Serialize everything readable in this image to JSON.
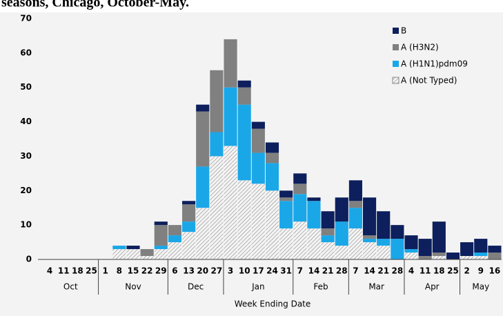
{
  "chart_data": {
    "type": "stacked_bar",
    "title": "seasons, Chicago, October-May.",
    "x_label": "Week Ending Date",
    "categories": [
      "4",
      "11",
      "18",
      "25",
      "1",
      "8",
      "15",
      "22",
      "29",
      "6",
      "13",
      "20",
      "27",
      "3",
      "10",
      "17",
      "24",
      "31",
      "7",
      "14",
      "21",
      "28",
      "7",
      "14",
      "21",
      "28",
      "4",
      "11",
      "18",
      "25",
      "2",
      "9",
      "16"
    ],
    "months": [
      "Oct",
      null,
      null,
      null,
      "Nov",
      null,
      null,
      null,
      null,
      "Dec",
      null,
      null,
      null,
      "Jan",
      null,
      null,
      null,
      null,
      "Feb",
      null,
      null,
      null,
      "Mar",
      null,
      null,
      null,
      "Apr",
      null,
      null,
      null,
      "May",
      null,
      null
    ],
    "series": [
      {
        "name": "A (Not Typed)",
        "color": "#d0d0d0",
        "hatch": true,
        "values": [
          0,
          0,
          0,
          0,
          0,
          3,
          3,
          1,
          3,
          5,
          8,
          15,
          30,
          33,
          23,
          22,
          20,
          9,
          11,
          9,
          5,
          4,
          9,
          5,
          4,
          0,
          2,
          0,
          1,
          0,
          1,
          1,
          0
        ]
      },
      {
        "name": "A (H1N1)pdm09",
        "color": "#1aa7e8",
        "values": [
          0,
          0,
          0,
          0,
          0,
          1,
          0,
          0,
          1,
          2,
          3,
          12,
          7,
          17,
          22,
          9,
          8,
          8,
          8,
          8,
          2,
          7,
          6,
          1,
          2,
          6,
          1,
          0,
          0,
          0,
          0,
          1,
          0
        ]
      },
      {
        "name": "A (H3N2)",
        "color": "#808080",
        "values": [
          0,
          0,
          0,
          0,
          0,
          0,
          0,
          2,
          6,
          3,
          5,
          16,
          18,
          14,
          5,
          7,
          3,
          1,
          3,
          0,
          2,
          0,
          2,
          1,
          0,
          0,
          0,
          1,
          1,
          0,
          0,
          0,
          2
        ]
      },
      {
        "name": "B",
        "color": "#0d1f5c",
        "values": [
          0,
          0,
          0,
          0,
          0,
          0,
          1,
          0,
          1,
          0,
          1,
          2,
          0,
          0,
          2,
          2,
          3,
          2,
          3,
          1,
          5,
          7,
          6,
          11,
          8,
          4,
          4,
          5,
          9,
          2,
          4,
          4,
          2
        ]
      }
    ],
    "ylim": [
      0,
      70
    ],
    "yticks": [
      0,
      10,
      20,
      30,
      40,
      50,
      60,
      70
    ],
    "legend": "top-right",
    "grid": false
  }
}
